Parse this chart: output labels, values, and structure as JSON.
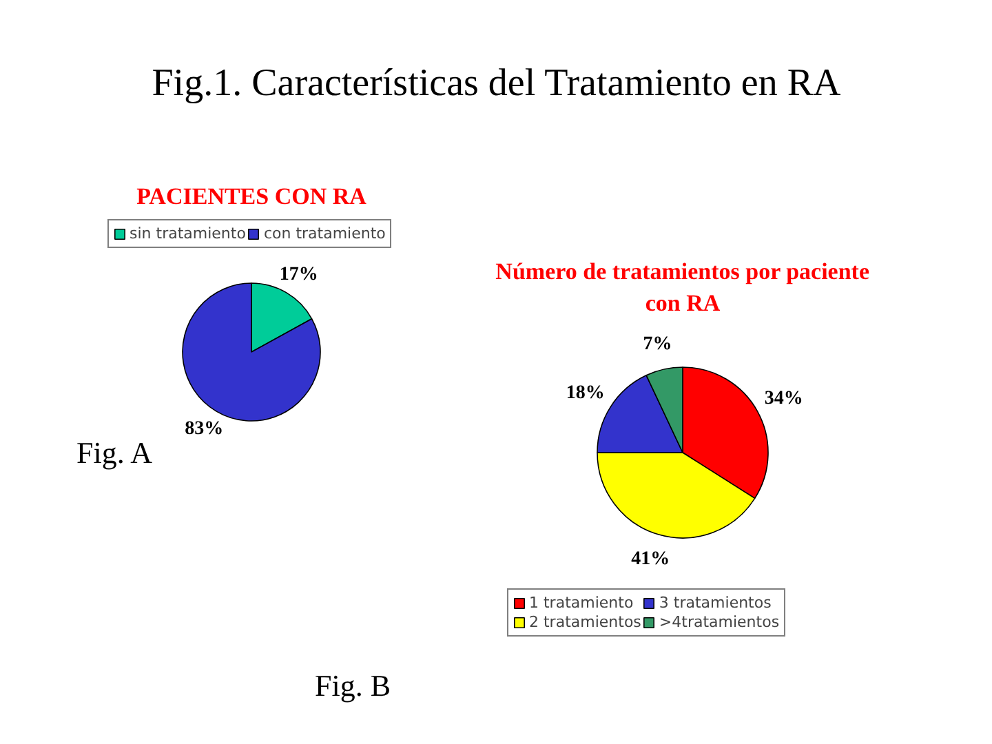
{
  "chart_data": [
    {
      "type": "pie",
      "title": "PACIENTES CON RA",
      "categories": [
        "sin tratamiento",
        "con tratamiento"
      ],
      "values": [
        17,
        83
      ],
      "colors": [
        "#00cc99",
        "#3333cc"
      ],
      "value_labels": [
        "17%",
        "83%"
      ],
      "legend": "top",
      "annotations": [
        "Fig.1. Características del Tratamiento en RA",
        "Fig. A"
      ]
    },
    {
      "type": "pie",
      "title": "Número de tratamientos por paciente con RA",
      "categories": [
        "1 tratamiento",
        "2 tratamientos",
        "3 tratamientos",
        ">4tratamientos"
      ],
      "values": [
        34,
        41,
        18,
        7
      ],
      "colors": [
        "#ff0000",
        "#ffff00",
        "#3333cc",
        "#339966"
      ],
      "value_labels": [
        "34%",
        "41%",
        "18%",
        "7%"
      ],
      "legend": "bottom",
      "annotations": [
        "Fig. B"
      ]
    }
  ]
}
